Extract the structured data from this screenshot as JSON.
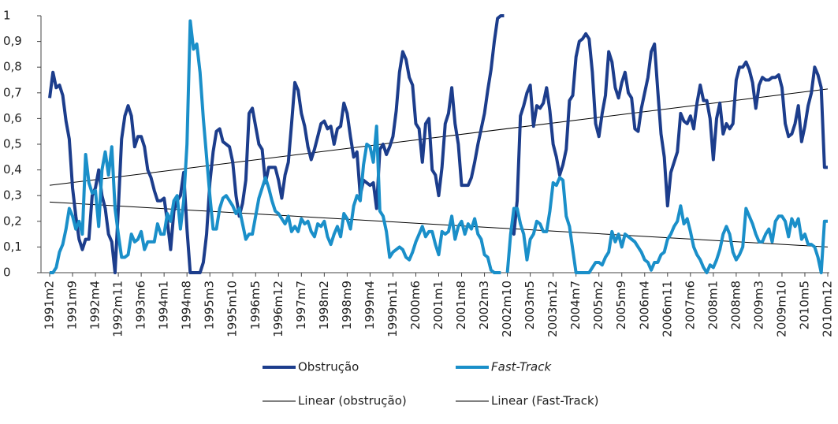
{
  "chart_data": {
    "type": "line",
    "categories": [
      "1991m2",
      null,
      null,
      null,
      null,
      null,
      null,
      "1991m9",
      null,
      null,
      null,
      null,
      null,
      null,
      "1992m4",
      null,
      null,
      null,
      null,
      null,
      null,
      "1992m11",
      null,
      null,
      null,
      null,
      null,
      null,
      "1993m6",
      null,
      null,
      null,
      null,
      null,
      null,
      "1994m1",
      null,
      null,
      null,
      null,
      null,
      null,
      "1994m8",
      null,
      null,
      null,
      null,
      null,
      null,
      "1995m3",
      null,
      null,
      null,
      null,
      null,
      null,
      "1995m10",
      null,
      null,
      null,
      null,
      null,
      null,
      "1996m5",
      null,
      null,
      null,
      null,
      null,
      null,
      "1996m12",
      null,
      null,
      null,
      null,
      null,
      null,
      "1997m7",
      null,
      null,
      null,
      null,
      null,
      null,
      "1998m2",
      null,
      null,
      null,
      null,
      null,
      null,
      "1998m9",
      null,
      null,
      null,
      null,
      null,
      null,
      "1999m4",
      null,
      null,
      null,
      null,
      null,
      null,
      "1999m11",
      null,
      null,
      null,
      null,
      null,
      null,
      "2000m6",
      null,
      null,
      null,
      null,
      null,
      null,
      "2001m1",
      null,
      null,
      null,
      null,
      null,
      null,
      "2001m8",
      null,
      null,
      null,
      null,
      null,
      null,
      "2002m3",
      null,
      null,
      null,
      null,
      null,
      null,
      "2002m10",
      null,
      null,
      null,
      null,
      null,
      null,
      "2003m5",
      null,
      null,
      null,
      null,
      null,
      null,
      "2003m12",
      null,
      null,
      null,
      null,
      null,
      null,
      "2004m7",
      null,
      null,
      null,
      null,
      null,
      null,
      "2005m2",
      null,
      null,
      null,
      null,
      null,
      null,
      "2005m9",
      null,
      null,
      null,
      null,
      null,
      null,
      "2006m4",
      null,
      null,
      null,
      null,
      null,
      null,
      "2006m11",
      null,
      null,
      null,
      null,
      null,
      null,
      "2007m6",
      null,
      null,
      null,
      null,
      null,
      null,
      "2008m1",
      null,
      null,
      null,
      null,
      null,
      null,
      "2008m8",
      null,
      null,
      null,
      null,
      null,
      null,
      "2009m3",
      null,
      null,
      null,
      null,
      null,
      null,
      "2009m10",
      null,
      null,
      null,
      null,
      null,
      null,
      "2010m5",
      null,
      null,
      null,
      null,
      null,
      null,
      "2010m12"
    ],
    "series": [
      {
        "name": "Obstrução",
        "color": "#1c3d8c",
        "values": [
          0.68,
          0.78,
          0.72,
          0.73,
          0.69,
          0.59,
          0.52,
          0.33,
          0.22,
          0.13,
          0.09,
          0.13,
          0.13,
          0.3,
          0.33,
          0.4,
          0.3,
          0.25,
          0.15,
          0.12,
          0.0,
          0.25,
          0.52,
          0.61,
          0.65,
          0.61,
          0.49,
          0.53,
          0.53,
          0.49,
          0.4,
          0.37,
          0.32,
          0.28,
          0.28,
          0.29,
          0.2,
          0.09,
          0.24,
          0.28,
          0.3,
          0.39,
          0.17,
          0.0,
          0.0,
          0.0,
          0.0,
          0.04,
          0.15,
          0.35,
          0.47,
          0.55,
          0.56,
          0.51,
          0.5,
          0.49,
          0.43,
          0.3,
          0.22,
          0.27,
          0.36,
          0.62,
          0.64,
          0.57,
          0.5,
          0.48,
          0.35,
          0.41,
          0.41,
          0.41,
          0.36,
          0.29,
          0.38,
          0.43,
          0.58,
          0.74,
          0.71,
          0.62,
          0.57,
          0.49,
          0.44,
          0.48,
          0.53,
          0.58,
          0.59,
          0.56,
          0.57,
          0.5,
          0.56,
          0.57,
          0.66,
          0.62,
          0.53,
          0.45,
          0.47,
          0.3,
          0.36,
          0.35,
          0.34,
          0.35,
          0.25,
          0.48,
          0.5,
          0.46,
          0.49,
          0.53,
          0.63,
          0.78,
          0.86,
          0.83,
          0.76,
          0.73,
          0.58,
          0.56,
          0.43,
          0.58,
          0.6,
          0.4,
          0.38,
          0.3,
          0.41,
          0.58,
          0.62,
          0.72,
          0.58,
          0.5,
          0.34,
          0.34,
          0.34,
          0.37,
          0.43,
          0.5,
          0.56,
          0.62,
          0.71,
          0.79,
          0.9,
          0.99,
          1.0,
          1.0,
          null,
          0.17,
          0.15,
          0.28,
          0.61,
          0.65,
          0.7,
          0.73,
          0.57,
          0.65,
          0.64,
          0.66,
          0.72,
          0.63,
          0.5,
          0.45,
          0.38,
          0.42,
          0.48,
          0.67,
          0.69,
          0.84,
          0.9,
          0.91,
          0.93,
          0.91,
          0.78,
          0.58,
          0.53,
          0.62,
          0.69,
          0.86,
          0.82,
          0.72,
          0.68,
          0.74,
          0.78,
          0.7,
          0.68,
          0.56,
          0.55,
          0.64,
          0.7,
          0.76,
          0.86,
          0.89,
          0.71,
          0.54,
          0.45,
          0.26,
          0.39,
          0.43,
          0.47,
          0.62,
          0.59,
          0.58,
          0.61,
          0.56,
          0.66,
          0.73,
          0.67,
          0.67,
          0.6,
          0.44,
          0.6,
          0.66,
          0.54,
          0.58,
          0.56,
          0.58,
          0.75,
          0.8,
          0.8,
          0.82,
          0.79,
          0.74,
          0.64,
          0.73,
          0.76,
          0.75,
          0.75,
          0.76,
          0.76,
          0.77,
          0.72,
          0.58,
          0.53,
          0.54,
          0.58,
          0.65,
          0.51,
          0.57,
          0.65,
          0.7,
          0.8,
          0.77,
          0.72,
          0.41,
          0.41
        ]
      },
      {
        "name": "Fast-Track",
        "color": "#1a8fc9",
        "values": [
          0.0,
          0.0,
          0.02,
          0.08,
          0.11,
          0.17,
          0.25,
          0.22,
          0.17,
          0.2,
          0.15,
          0.46,
          0.35,
          0.31,
          0.32,
          0.18,
          0.4,
          0.47,
          0.38,
          0.49,
          0.25,
          0.15,
          0.06,
          0.06,
          0.07,
          0.15,
          0.12,
          0.13,
          0.16,
          0.09,
          0.12,
          0.12,
          0.12,
          0.19,
          0.15,
          0.15,
          0.23,
          0.2,
          0.28,
          0.3,
          0.17,
          0.28,
          0.5,
          0.98,
          0.87,
          0.89,
          0.78,
          0.6,
          0.45,
          0.3,
          0.17,
          0.17,
          0.25,
          0.29,
          0.3,
          0.28,
          0.26,
          0.23,
          0.25,
          0.19,
          0.13,
          0.15,
          0.15,
          0.22,
          0.29,
          0.33,
          0.37,
          0.33,
          0.28,
          0.24,
          0.23,
          0.21,
          0.19,
          0.22,
          0.16,
          0.18,
          0.16,
          0.21,
          0.19,
          0.2,
          0.16,
          0.14,
          0.19,
          0.18,
          0.2,
          0.14,
          0.11,
          0.15,
          0.18,
          0.14,
          0.23,
          0.21,
          0.17,
          0.26,
          0.3,
          0.28,
          0.42,
          0.5,
          0.49,
          0.43,
          0.57,
          0.24,
          0.22,
          0.16,
          0.06,
          0.08,
          0.09,
          0.1,
          0.09,
          0.06,
          0.05,
          0.08,
          0.12,
          0.15,
          0.18,
          0.14,
          0.16,
          0.16,
          0.11,
          0.07,
          0.16,
          0.15,
          0.16,
          0.22,
          0.13,
          0.18,
          0.2,
          0.15,
          0.19,
          0.17,
          0.21,
          0.15,
          0.13,
          0.07,
          0.06,
          0.01,
          0.0,
          0.0,
          0.0,
          null,
          0.0,
          0.15,
          0.25,
          0.25,
          0.19,
          0.15,
          0.05,
          0.13,
          0.15,
          0.2,
          0.19,
          0.16,
          0.16,
          0.24,
          0.35,
          0.34,
          0.37,
          0.36,
          0.22,
          0.18,
          0.09,
          0.0,
          0.0,
          0.0,
          0.0,
          0.0,
          0.02,
          0.04,
          0.04,
          0.03,
          0.06,
          0.08,
          0.16,
          0.12,
          0.15,
          0.1,
          0.15,
          0.14,
          0.13,
          0.12,
          0.1,
          0.08,
          0.05,
          0.04,
          0.01,
          0.04,
          0.04,
          0.07,
          0.08,
          0.13,
          0.15,
          0.18,
          0.2,
          0.26,
          0.19,
          0.21,
          0.16,
          0.1,
          0.07,
          0.05,
          0.02,
          0.0,
          0.03,
          0.02,
          0.05,
          0.09,
          0.15,
          0.18,
          0.15,
          0.08,
          0.05,
          0.07,
          0.1,
          0.25,
          0.22,
          0.19,
          0.15,
          0.12,
          0.12,
          0.15,
          0.17,
          0.12,
          0.2,
          0.22,
          0.22,
          0.2,
          0.14,
          0.21,
          0.18,
          0.21,
          0.13,
          0.15,
          0.11,
          0.11,
          0.1,
          0.06,
          0.0,
          0.2,
          0.2
        ]
      }
    ],
    "trendlines": [
      {
        "name": "Linear (obstrução)",
        "color": "#000000",
        "from": 0.34,
        "to": 0.715
      },
      {
        "name": "Linear (Fast-Track)",
        "color": "#000000",
        "from": 0.275,
        "to": 0.1
      }
    ],
    "ylim": [
      0,
      1
    ],
    "yticks": [
      0,
      {
        "value": 0.1,
        "label": "0,1"
      },
      {
        "value": 0.2,
        "label": "0,2"
      },
      {
        "value": 0.3,
        "label": "0,3"
      },
      {
        "value": 0.4,
        "label": "0,4"
      },
      {
        "value": 0.5,
        "label": "0,5"
      },
      {
        "value": 0.6,
        "label": "0,6"
      },
      {
        "value": 0.7,
        "label": "0,7"
      },
      {
        "value": 0.8,
        "label": "0,8"
      },
      {
        "value": 0.9,
        "label": "0,9"
      },
      1
    ],
    "grid": false
  }
}
